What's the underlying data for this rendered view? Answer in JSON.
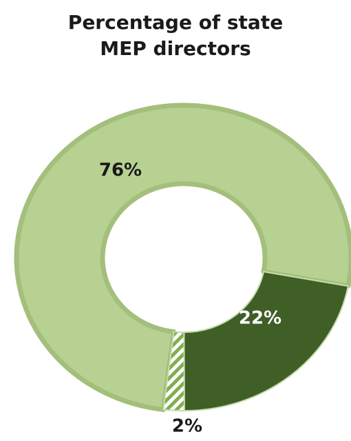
{
  "chart_data": {
    "type": "donut",
    "title": [
      "Percentage of state",
      "MEP directors"
    ],
    "categories": [
      null,
      null,
      null
    ],
    "values": [
      76,
      22,
      2
    ],
    "value_labels": [
      "76%",
      "22%",
      "2%"
    ],
    "colors": [
      "#b7d192",
      "#3f5f27",
      "#7fae4f"
    ],
    "hatch": [
      false,
      false,
      true
    ],
    "label_colors": [
      "#1a1a1a",
      "#ffffff",
      "#1a1a1a"
    ]
  }
}
